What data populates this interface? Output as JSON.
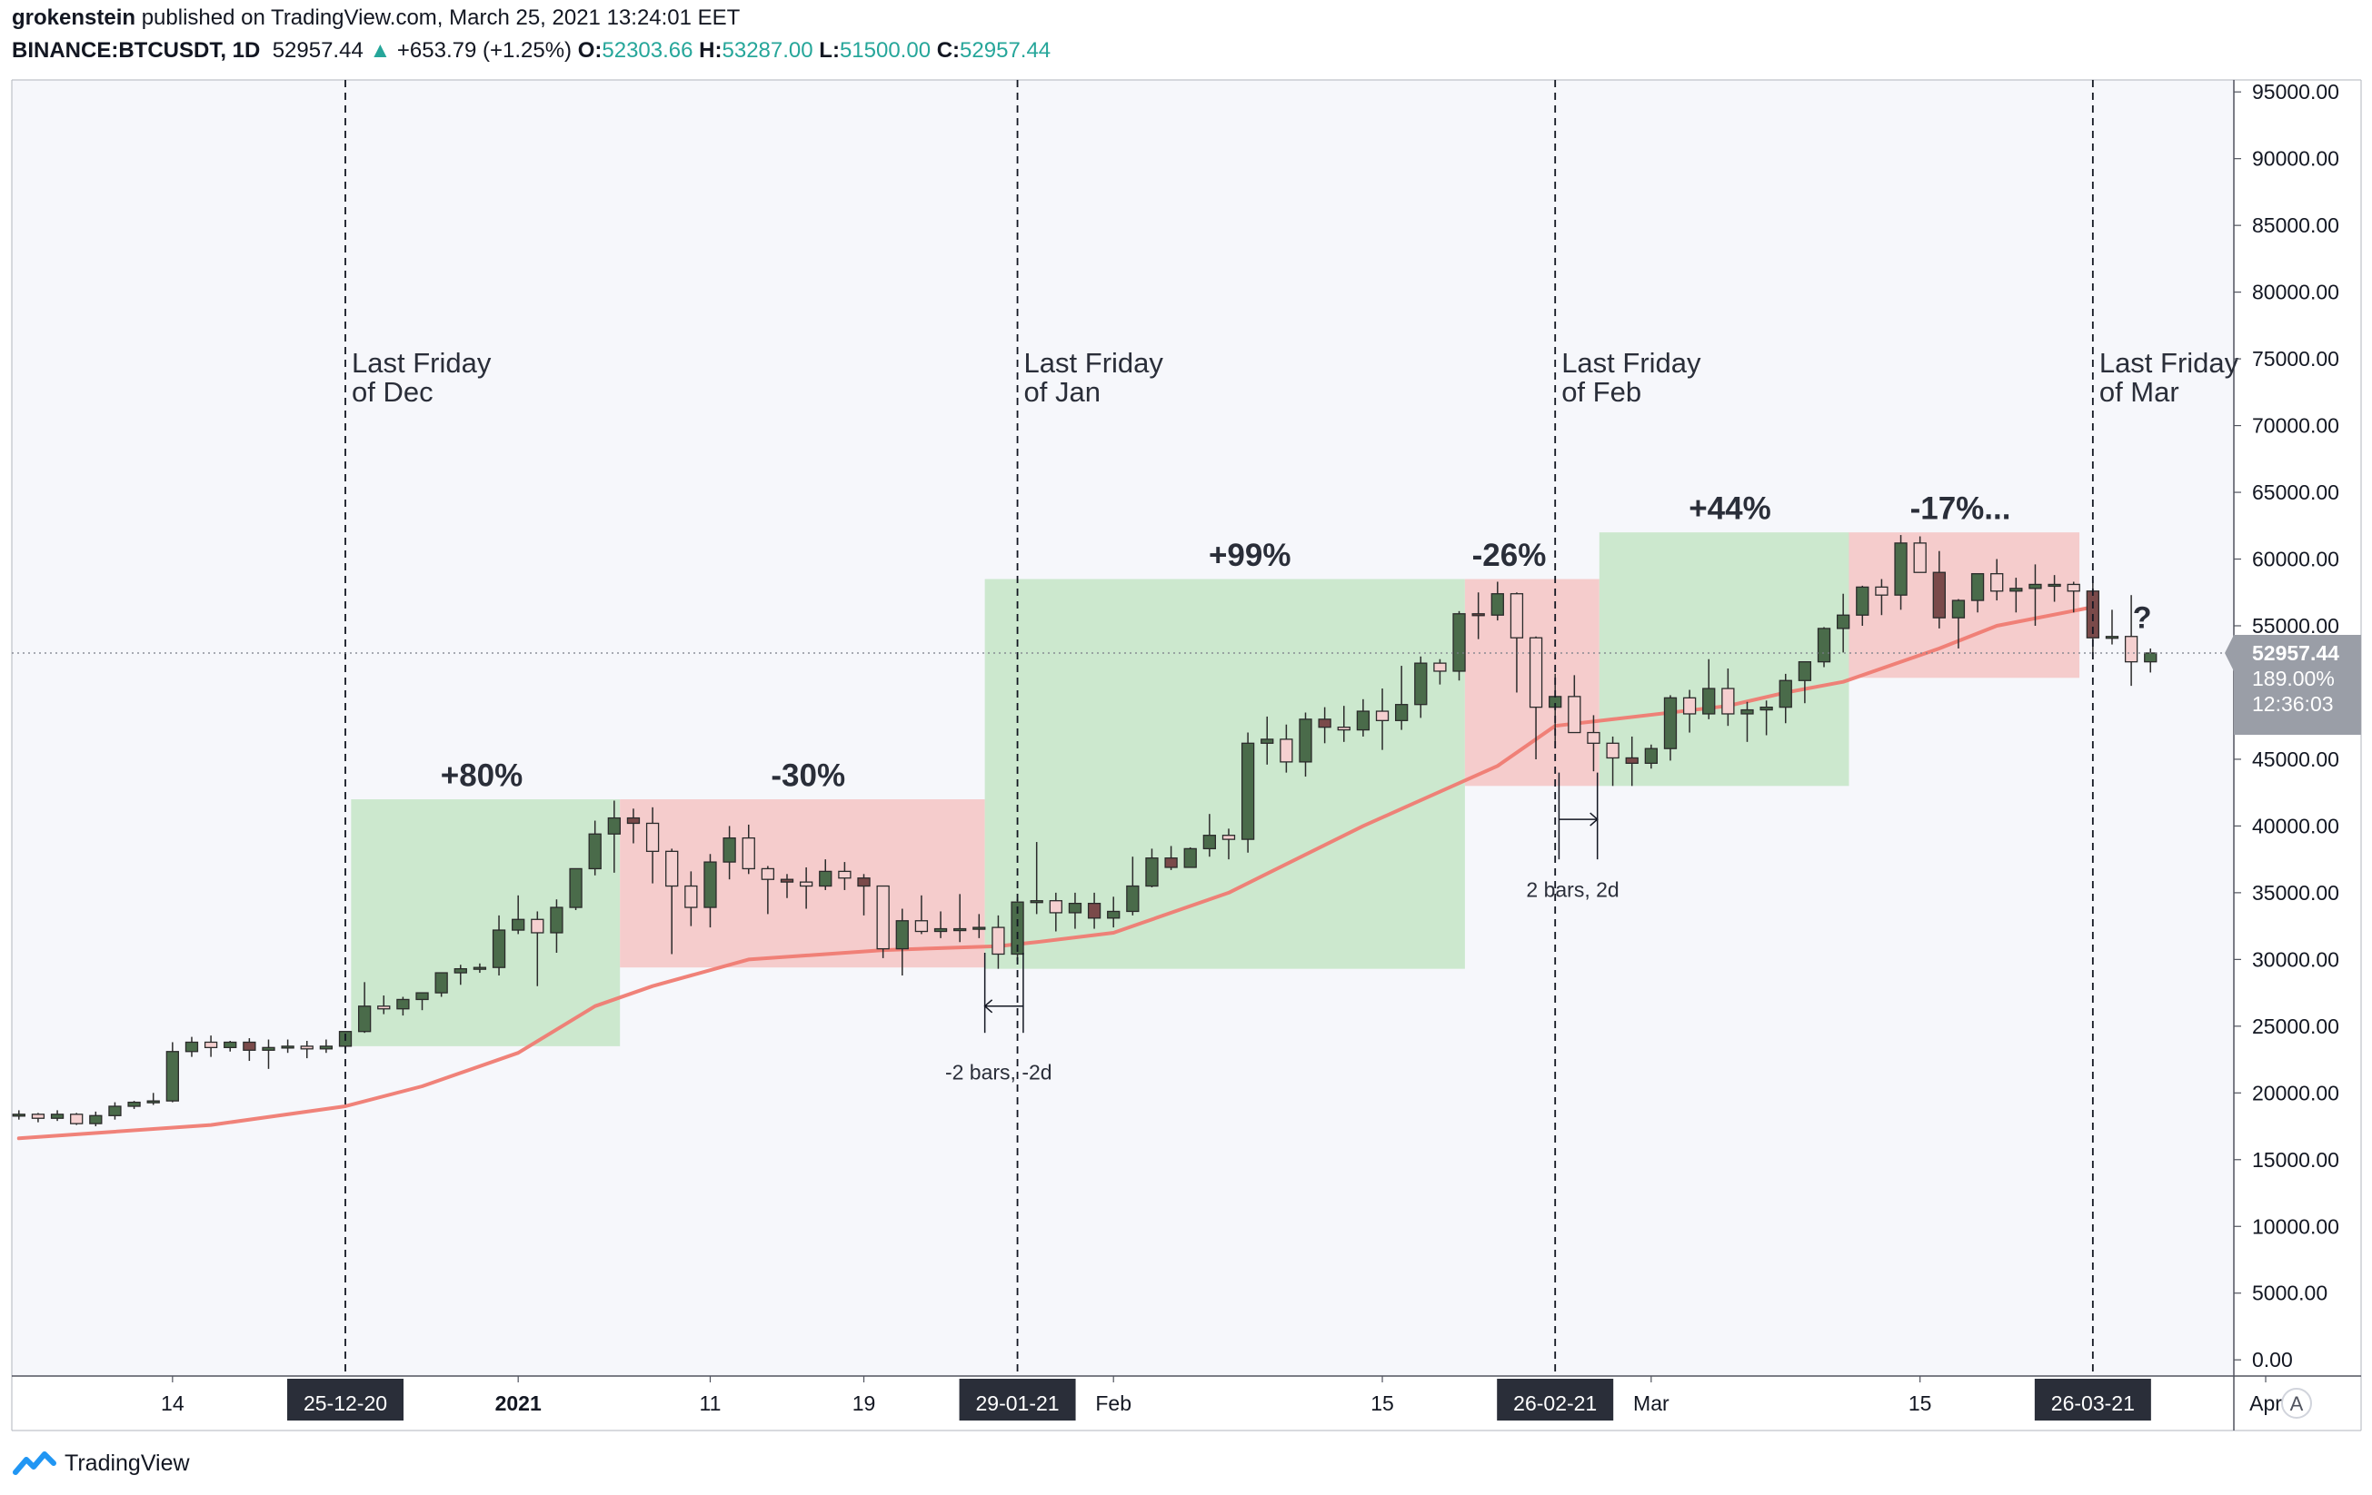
{
  "header": {
    "author": "grokenstein",
    "published_text": " published on TradingView.com, March 25, 2021 13:24:01 EET",
    "symbol": "BINANCE:BTCUSDT, 1D",
    "last": "52957.44",
    "change_arrow": "▲",
    "change": "+653.79 (+1.25%)",
    "open_label": "O:",
    "open": "52303.66",
    "high_label": "H:",
    "high": "53287.00",
    "low_label": "L:",
    "low": "51500.00",
    "close_label": "C:",
    "close": "52957.44"
  },
  "footer": {
    "brand": "TradingView",
    "logo_icon": "tradingview-logo-icon"
  },
  "auto_scale_button": "A",
  "colors": {
    "up_body": "#4a6b4a",
    "down_body": "#7a4a4a",
    "hollow_body": "#f5d0d0",
    "green_zone": "#c8e6c9",
    "red_zone": "#f5c6c6",
    "ma_line": "#ef7b72",
    "background": "#f6f7fb",
    "axis_label_bg": "#2a2e39",
    "price_label_bg": "#9a9ea7"
  },
  "chart_data": {
    "type": "candlestick",
    "y_axis": {
      "ylim": [
        0,
        95000
      ],
      "ticks": [
        "95000.00",
        "90000.00",
        "85000.00",
        "80000.00",
        "75000.00",
        "70000.00",
        "65000.00",
        "60000.00",
        "55000.00",
        "50000.00",
        "45000.00",
        "40000.00",
        "35000.00",
        "30000.00",
        "25000.00",
        "20000.00",
        "15000.00",
        "10000.00",
        "5000.00",
        "0.00"
      ]
    },
    "x_axis": {
      "start_date": "2020-12-06",
      "end_date": "2021-04-04",
      "ticks": [
        {
          "label": "14",
          "day": 8
        },
        {
          "label": "2021",
          "day": 26,
          "bold": true
        },
        {
          "label": "11",
          "day": 36
        },
        {
          "label": "19",
          "day": 44
        },
        {
          "label": "Feb",
          "day": 57
        },
        {
          "label": "15",
          "day": 71
        },
        {
          "label": "Mar",
          "day": 85
        },
        {
          "label": "15",
          "day": 99
        },
        {
          "label": "Apr",
          "day": 117
        }
      ],
      "highlight_dates": [
        {
          "label": "25-12-20",
          "day": 17
        },
        {
          "label": "29-01-21",
          "day": 52
        },
        {
          "label": "26-02-21",
          "day": 80
        },
        {
          "label": "26-03-21",
          "day": 108
        }
      ]
    },
    "price_marker": {
      "price": "52957.44",
      "percent": "189.00%",
      "countdown": "12:36:03",
      "value": 52957.44
    },
    "candles": [
      [
        18300,
        18700,
        18000,
        18400
      ],
      [
        18400,
        18500,
        17800,
        18100
      ],
      [
        18100,
        18700,
        17900,
        18400
      ],
      [
        18400,
        18500,
        17600,
        17700
      ],
      [
        17700,
        18600,
        17500,
        18300
      ],
      [
        18300,
        19300,
        18000,
        19000
      ],
      [
        19000,
        19400,
        18800,
        19300
      ],
      [
        19300,
        20000,
        19100,
        19400
      ],
      [
        19400,
        23800,
        19300,
        23100
      ],
      [
        23100,
        24200,
        22700,
        23800
      ],
      [
        23800,
        24300,
        22700,
        23400
      ],
      [
        23400,
        23900,
        23100,
        23800
      ],
      [
        23800,
        24100,
        22400,
        23200
      ],
      [
        23200,
        24000,
        21800,
        23400
      ],
      [
        23400,
        24000,
        23000,
        23500
      ],
      [
        23500,
        23900,
        22600,
        23300
      ],
      [
        23300,
        24000,
        23000,
        23500
      ],
      [
        23500,
        24500,
        23300,
        24600
      ],
      [
        24600,
        28300,
        24500,
        26500
      ],
      [
        26500,
        27300,
        25900,
        26300
      ],
      [
        26300,
        27200,
        25800,
        27000
      ],
      [
        27000,
        27400,
        26200,
        27500
      ],
      [
        27500,
        28500,
        27200,
        29000
      ],
      [
        29000,
        29600,
        28100,
        29300
      ],
      [
        29300,
        29700,
        29000,
        29400
      ],
      [
        29400,
        33300,
        28800,
        32200
      ],
      [
        32200,
        34800,
        31900,
        33000
      ],
      [
        33000,
        33600,
        28000,
        32000
      ],
      [
        32000,
        34500,
        30500,
        33900
      ],
      [
        33900,
        36600,
        33700,
        36800
      ],
      [
        36800,
        40400,
        36300,
        39400
      ],
      [
        39400,
        41900,
        36500,
        40600
      ],
      [
        40600,
        41300,
        38700,
        40200
      ],
      [
        40200,
        41400,
        35700,
        38100
      ],
      [
        38100,
        38300,
        30400,
        35500
      ],
      [
        35500,
        36600,
        32500,
        33900
      ],
      [
        33900,
        37900,
        32400,
        37300
      ],
      [
        37300,
        40000,
        36000,
        39100
      ],
      [
        39100,
        40100,
        36400,
        36800
      ],
      [
        36800,
        37000,
        33400,
        36000
      ],
      [
        36000,
        36400,
        34600,
        35800
      ],
      [
        35800,
        36900,
        33800,
        35500
      ],
      [
        35500,
        37500,
        35200,
        36600
      ],
      [
        36600,
        37300,
        35200,
        36100
      ],
      [
        36100,
        36400,
        33300,
        35500
      ],
      [
        35500,
        35500,
        30100,
        30800
      ],
      [
        30800,
        33800,
        28800,
        32900
      ],
      [
        32900,
        34800,
        31900,
        32100
      ],
      [
        32100,
        33600,
        31600,
        32300
      ],
      [
        32300,
        34900,
        31300,
        32300
      ],
      [
        32300,
        33400,
        31600,
        32400
      ],
      [
        32400,
        33300,
        29300,
        30400
      ],
      [
        30400,
        34500,
        29900,
        34300
      ],
      [
        34300,
        38800,
        33400,
        34400
      ],
      [
        34400,
        35000,
        32100,
        33500
      ],
      [
        33500,
        35000,
        32300,
        34200
      ],
      [
        34200,
        35000,
        32300,
        33100
      ],
      [
        33100,
        34700,
        32400,
        33600
      ],
      [
        33600,
        37700,
        33300,
        35500
      ],
      [
        35500,
        38300,
        35400,
        37600
      ],
      [
        37600,
        38500,
        36700,
        36900
      ],
      [
        36900,
        38400,
        36900,
        38300
      ],
      [
        38300,
        40900,
        37700,
        39300
      ],
      [
        39300,
        39800,
        37500,
        39000
      ],
      [
        39000,
        47000,
        38000,
        46200
      ],
      [
        46200,
        48200,
        44600,
        46500
      ],
      [
        46500,
        47600,
        44000,
        44800
      ],
      [
        44800,
        48500,
        43700,
        48000
      ],
      [
        48000,
        48900,
        46200,
        47400
      ],
      [
        47400,
        49000,
        46300,
        47200
      ],
      [
        47200,
        49500,
        46700,
        48600
      ],
      [
        48600,
        50300,
        45700,
        47900
      ],
      [
        47900,
        52000,
        47200,
        49100
      ],
      [
        49100,
        52700,
        48100,
        52200
      ],
      [
        52200,
        52500,
        50600,
        51600
      ],
      [
        51600,
        56100,
        50900,
        55900
      ],
      [
        55900,
        57500,
        54000,
        55800
      ],
      [
        55800,
        58300,
        55400,
        57400
      ],
      [
        57400,
        57500,
        50000,
        54100
      ],
      [
        54100,
        54200,
        45000,
        48900
      ],
      [
        48900,
        51400,
        46300,
        49700
      ],
      [
        49700,
        51300,
        47000,
        47000
      ],
      [
        47000,
        48300,
        44100,
        46200
      ],
      [
        46200,
        46700,
        43000,
        45100
      ],
      [
        45100,
        46700,
        43000,
        44700
      ],
      [
        44700,
        46100,
        44300,
        45800
      ],
      [
        45800,
        49800,
        44900,
        49600
      ],
      [
        49600,
        50200,
        47000,
        48400
      ],
      [
        48400,
        52500,
        48000,
        50300
      ],
      [
        50300,
        51800,
        47500,
        48400
      ],
      [
        48400,
        49300,
        46300,
        48700
      ],
      [
        48700,
        49400,
        46800,
        48900
      ],
      [
        48900,
        51400,
        47700,
        50900
      ],
      [
        50900,
        52200,
        49200,
        52300
      ],
      [
        52300,
        54900,
        51900,
        54800
      ],
      [
        54800,
        57400,
        53000,
        55800
      ],
      [
        55800,
        58000,
        55000,
        57900
      ],
      [
        57900,
        58500,
        55800,
        57300
      ],
      [
        57300,
        61800,
        56200,
        61200
      ],
      [
        61200,
        61700,
        59600,
        59000
      ],
      [
        59000,
        60600,
        54800,
        55600
      ],
      [
        55600,
        57000,
        53300,
        56900
      ],
      [
        56900,
        58800,
        56000,
        58900
      ],
      [
        58900,
        60000,
        56900,
        57600
      ],
      [
        57600,
        58600,
        56000,
        57800
      ],
      [
        57800,
        59600,
        55000,
        58100
      ],
      [
        58100,
        58800,
        56800,
        58100
      ],
      [
        58100,
        58300,
        56000,
        57600
      ],
      [
        57600,
        58400,
        53000,
        54100
      ],
      [
        54100,
        56200,
        53600,
        54200
      ],
      [
        54200,
        57300,
        50500,
        52300
      ],
      [
        52300,
        53300,
        51500,
        52960
      ]
    ],
    "ma_line": [
      [
        0,
        16600
      ],
      [
        10,
        17600
      ],
      [
        17,
        19000
      ],
      [
        21,
        20500
      ],
      [
        26,
        23000
      ],
      [
        30,
        26500
      ],
      [
        33,
        28000
      ],
      [
        38,
        30000
      ],
      [
        45,
        30700
      ],
      [
        51,
        31000
      ],
      [
        53,
        31300
      ],
      [
        57,
        32000
      ],
      [
        63,
        35000
      ],
      [
        70,
        40000
      ],
      [
        77,
        44500
      ],
      [
        80,
        47500
      ],
      [
        83,
        48000
      ],
      [
        89,
        49000
      ],
      [
        92,
        50000
      ],
      [
        95,
        50800
      ],
      [
        100,
        53300
      ],
      [
        103,
        55000
      ],
      [
        108,
        56400
      ]
    ],
    "zones": [
      {
        "color": "green",
        "x0": 17.3,
        "x1": 31.3,
        "y0": 23500,
        "y1": 42000
      },
      {
        "color": "red",
        "x0": 31.3,
        "x1": 50.3,
        "y0": 29400,
        "y1": 42000
      },
      {
        "color": "green",
        "x0": 50.3,
        "x1": 75.3,
        "y0": 29300,
        "y1": 58500
      },
      {
        "color": "red",
        "x0": 75.3,
        "x1": 82.3,
        "y0": 43000,
        "y1": 58500
      },
      {
        "color": "green",
        "x0": 82.3,
        "x1": 95.3,
        "y0": 43000,
        "y1": 62000
      },
      {
        "color": "red",
        "x0": 95.3,
        "x1": 107.3,
        "y0": 51100,
        "y1": 62000
      }
    ],
    "zone_labels": [
      {
        "text": "+80%",
        "day": 24.1,
        "y": 43000
      },
      {
        "text": "-30%",
        "day": 41.1,
        "y": 43000
      },
      {
        "text": "+99%",
        "day": 64.1,
        "y": 59500
      },
      {
        "text": "-26%",
        "day": 77.6,
        "y": 59500
      },
      {
        "text": "+44%",
        "day": 89.1,
        "y": 63000
      },
      {
        "text": "-17%...",
        "day": 101.1,
        "y": 63000
      }
    ],
    "vertical_lines": [
      {
        "day": 17,
        "label_line1": "Last Friday",
        "label_line2": "of Dec",
        "y": 74000
      },
      {
        "day": 52,
        "label_line1": "Last Friday",
        "label_line2": "of Jan",
        "y": 74000
      },
      {
        "day": 80,
        "label_line1": "Last Friday",
        "label_line2": "of Feb",
        "y": 74000
      },
      {
        "day": 108,
        "label_line1": "Last Friday",
        "label_line2": "of Mar",
        "y": 74000
      }
    ],
    "question_mark": {
      "text": "?",
      "day": 110,
      "y": 55500
    },
    "measures": [
      {
        "text": "-2 bars, -2d",
        "from_day": 50.3,
        "to_day": 52.3,
        "y_arrow": 26500,
        "y_text": 21000,
        "y0": 24500,
        "y1": 30500
      },
      {
        "text": "2 bars, 2d",
        "from_day": 80.2,
        "to_day": 82.2,
        "y_arrow": 40500,
        "y_text": 34700,
        "y0": 37500,
        "y1": 44000
      }
    ],
    "current_price_line": 52957.44,
    "title": "",
    "xlabel": "",
    "ylabel": ""
  }
}
